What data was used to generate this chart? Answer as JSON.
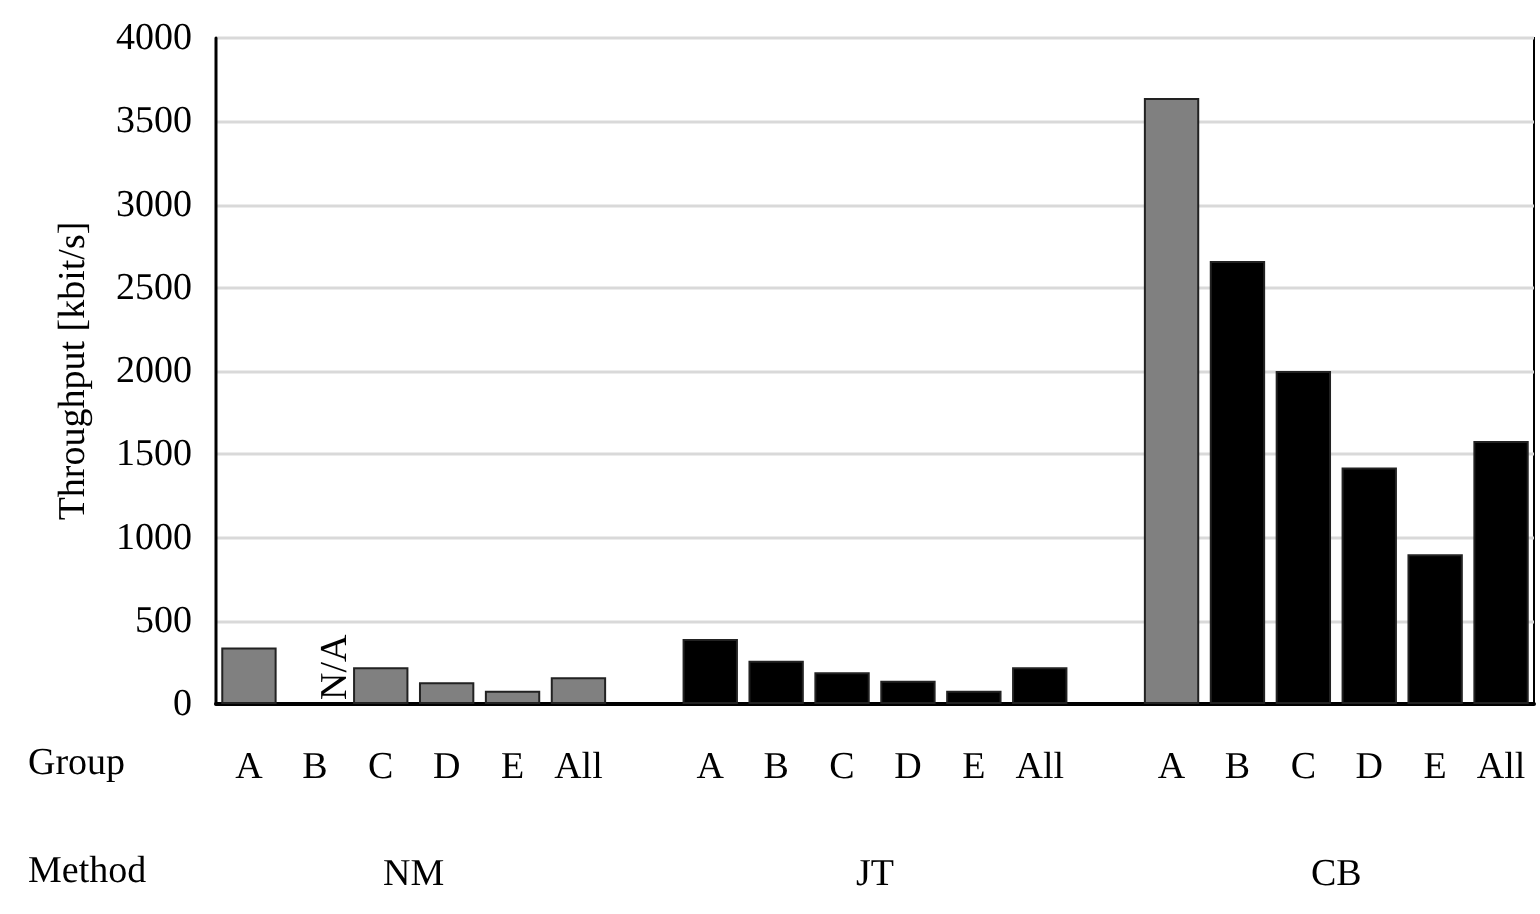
{
  "chart_data": {
    "type": "bar",
    "ylabel": "Throughput [kbit/s]",
    "categories": [
      "A",
      "B",
      "C",
      "D",
      "E",
      "All",
      null,
      "A",
      "B",
      "C",
      "D",
      "E",
      "All",
      null,
      "A",
      "B",
      "C",
      "D",
      "E",
      "All"
    ],
    "values": [
      340,
      null,
      220,
      130,
      80,
      160,
      null,
      390,
      260,
      190,
      140,
      80,
      220,
      null,
      3640,
      2660,
      2000,
      1420,
      900,
      1580
    ],
    "colors": [
      "#808080",
      "#808080",
      "#808080",
      "#808080",
      "#808080",
      "#808080",
      "#000000",
      "#000000",
      "#000000",
      "#000000",
      "#000000",
      "#000000",
      "#000000",
      "#000000",
      "#808080",
      "#000000",
      "#000000",
      "#000000",
      "#000000",
      "#000000"
    ],
    "annotations": [
      "N/A",
      "Group",
      "Method",
      "NM",
      "JT",
      "CB"
    ],
    "ylim": [
      0,
      4000
    ],
    "yticks": [
      0,
      500,
      1000,
      1500,
      2000,
      2500,
      3000,
      3500,
      4000
    ],
    "grid": "y"
  }
}
